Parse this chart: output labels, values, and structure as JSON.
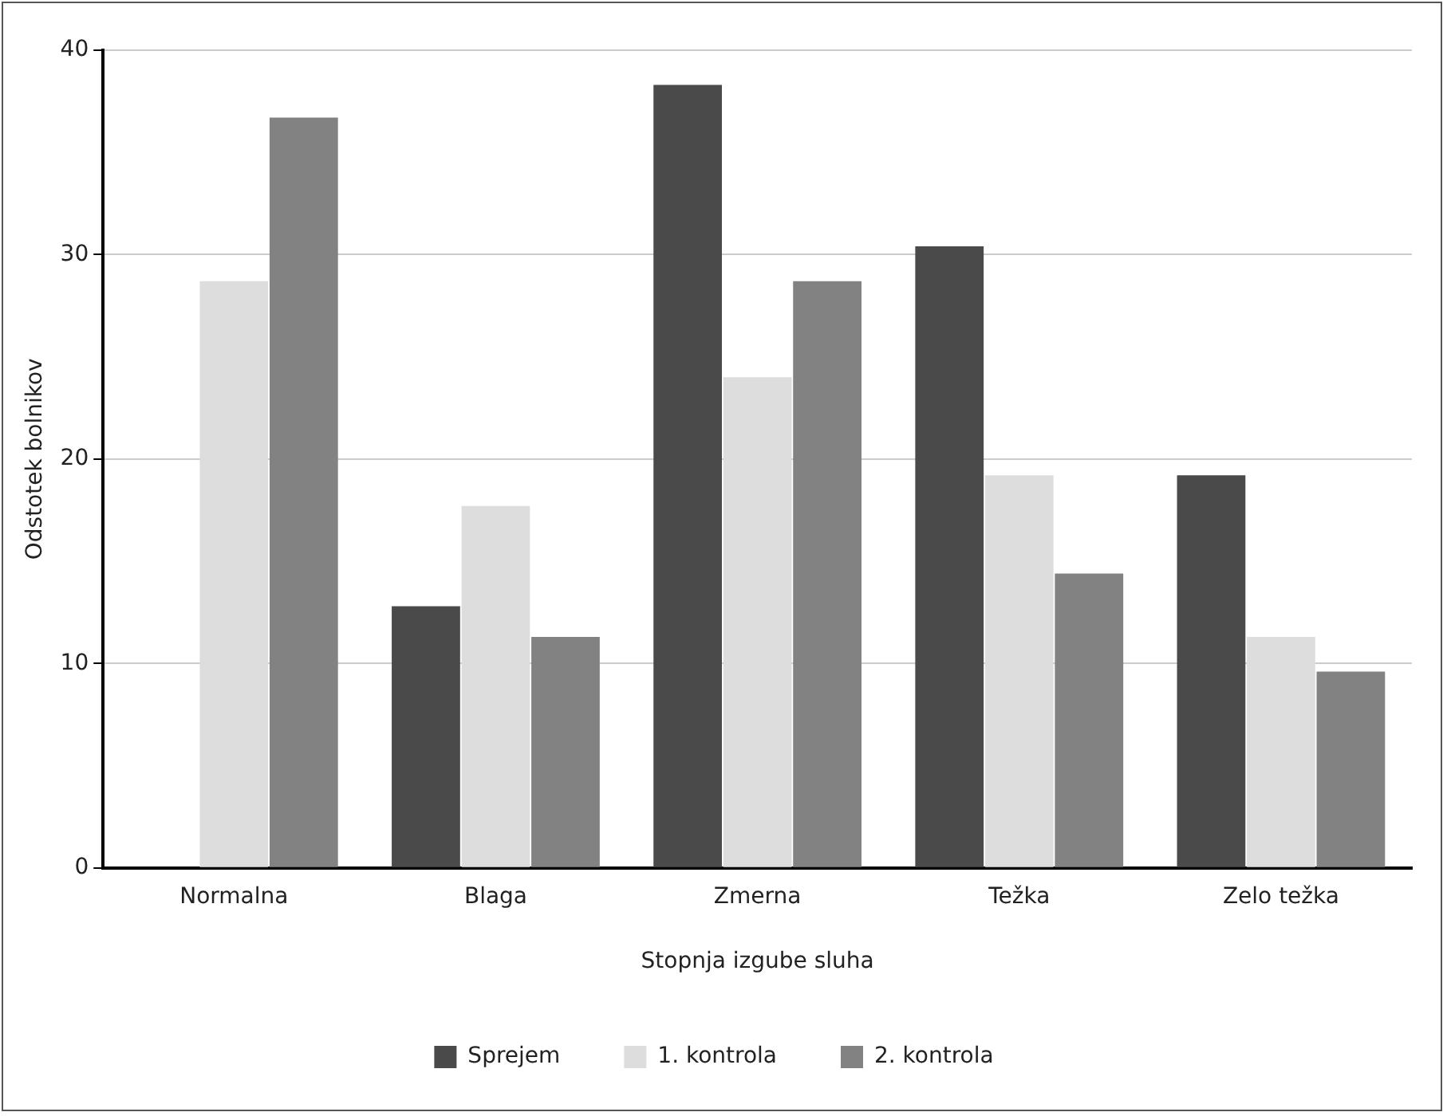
{
  "chart_data": {
    "type": "bar",
    "xlabel": "Stopnja izgube sluha",
    "ylabel": "Odstotek bolnikov",
    "categories": [
      "Normalna",
      "Blaga",
      "Zmerna",
      "Težka",
      "Zelo težka"
    ],
    "series": [
      {
        "name": "Sprejem",
        "color": "#4a4a4a",
        "values": [
          0,
          12.8,
          38.3,
          30.4,
          19.2
        ]
      },
      {
        "name": "1. kontrola",
        "color": "#dddddd",
        "values": [
          28.7,
          17.7,
          24.0,
          19.2,
          11.3
        ]
      },
      {
        "name": "2. kontrola",
        "color": "#828282",
        "values": [
          36.7,
          11.3,
          28.7,
          14.4,
          9.6
        ]
      }
    ],
    "ylim": [
      0,
      40
    ],
    "yticks": [
      0,
      10,
      20,
      30,
      40
    ],
    "grid": "y",
    "legend": "bottom"
  }
}
